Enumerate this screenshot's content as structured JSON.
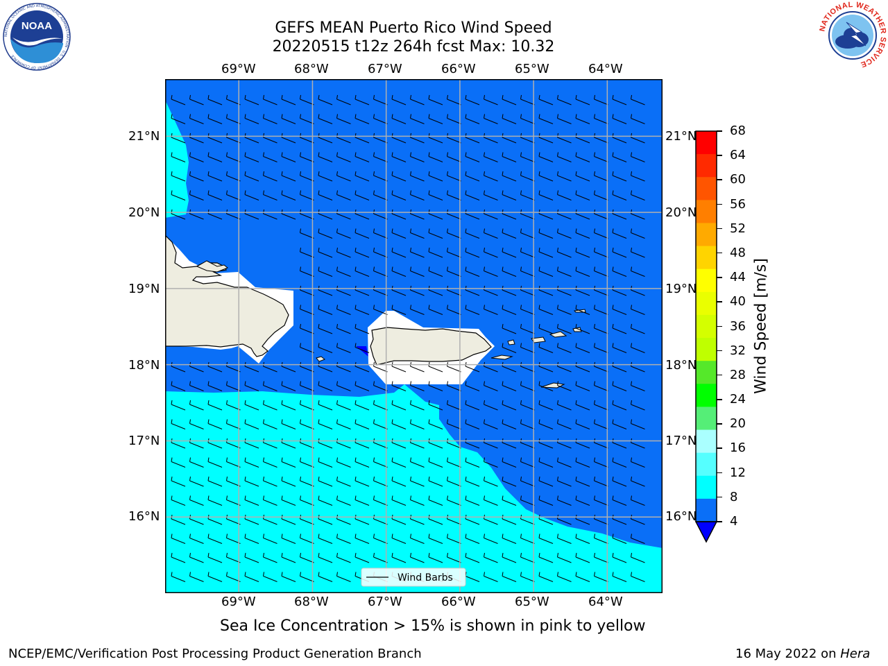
{
  "header": {
    "title_line1": "GEFS MEAN Puerto Rico Wind Speed",
    "title_line2": "20220515 t12z 264h fcst   Max: 10.32"
  },
  "logos": {
    "noaa_text": "NOAA",
    "noaa_ring": "NATIONAL OCEANIC AND ATMOSPHERIC ADMINISTRATION · U.S. DEPARTMENT OF COMMERCE",
    "nws_ring": "NATIONAL WEATHER SERVICE"
  },
  "map": {
    "lon_labels": [
      "69°W",
      "68°W",
      "67°W",
      "66°W",
      "65°W",
      "64°W"
    ],
    "lat_labels": [
      "21°N",
      "20°N",
      "19°N",
      "18°N",
      "17°N",
      "16°N"
    ],
    "lon_range": [
      -70.0,
      -63.25
    ],
    "lat_range": [
      15.0,
      21.75
    ],
    "legend_label": "Wind Barbs",
    "colors": {
      "ocean_4_8": "#0a6ff7",
      "ocean_8_12": "#00ffff",
      "below_4": "#0000ff",
      "land": "#eeede0",
      "masked": "#ffffff",
      "grid": "#b0b0b0"
    }
  },
  "colorbar": {
    "label": "Wind Speed [m/s]",
    "ticks": [
      "68",
      "64",
      "60",
      "56",
      "52",
      "48",
      "44",
      "40",
      "36",
      "32",
      "28",
      "24",
      "20",
      "16",
      "12",
      "8",
      "4"
    ],
    "colors_top_to_bottom": [
      "#ff0000",
      "#ff2a00",
      "#ff5500",
      "#ff7f00",
      "#ffaa00",
      "#ffd400",
      "#ffff00",
      "#eaff00",
      "#d4ff00",
      "#bfff00",
      "#55e82a",
      "#00ff00",
      "#55ee77",
      "#aaffff",
      "#55ffff",
      "#00ffff",
      "#0a6ff7"
    ],
    "extend_below_color": "#0000ff"
  },
  "notes": {
    "sea_ice": "Sea Ice Concentration > 15% is shown in pink to yellow",
    "footer_left": "NCEP/EMC/Verification Post Processing Product Generation Branch",
    "footer_right_prefix": "16 May 2022 on ",
    "footer_right_host": "Hera"
  }
}
